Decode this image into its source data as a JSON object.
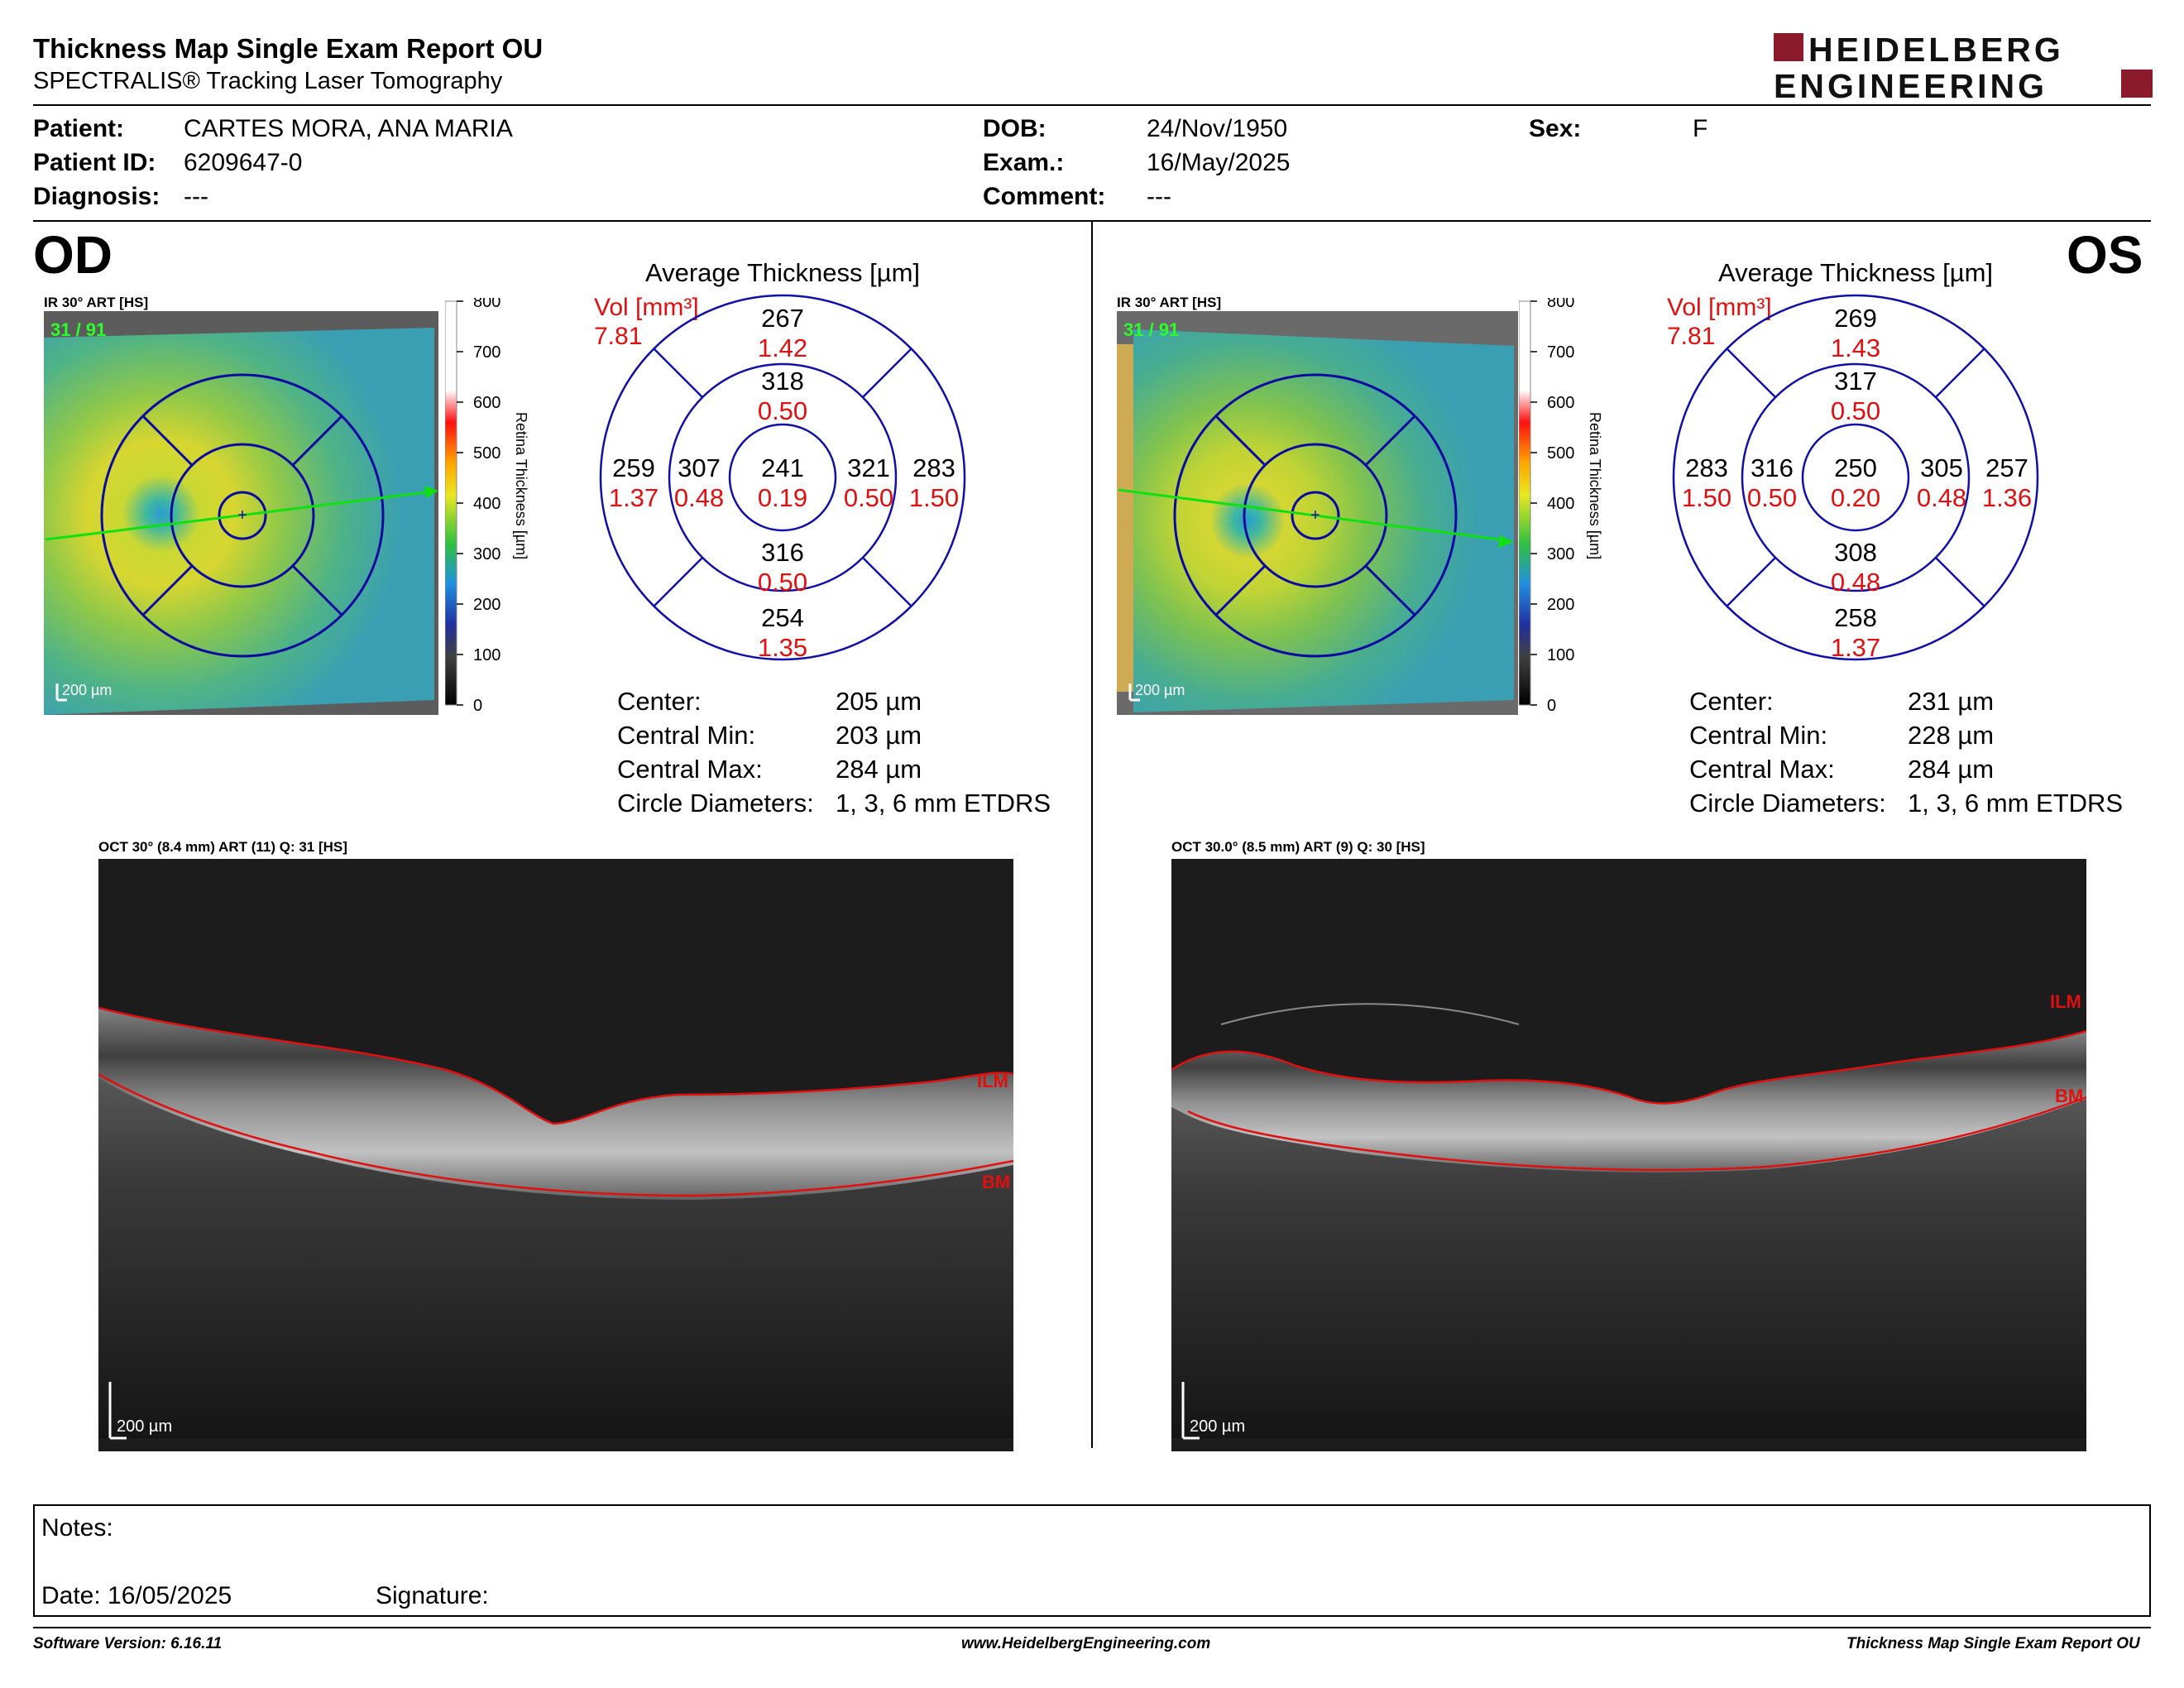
{
  "header": {
    "title": "Thickness Map Single Exam Report OU",
    "subtitle": "SPECTRALIS® Tracking Laser Tomography",
    "logo_line1": "HEIDELBERG",
    "logo_line2": "ENGINEERING",
    "logo_accent": "#8b1a2b"
  },
  "patient": {
    "patient_label": "Patient:",
    "patient_value": "CARTES MORA, ANA MARIA",
    "id_label": "Patient ID:",
    "id_value": "6209647-0",
    "diagnosis_label": "Diagnosis:",
    "diagnosis_value": "---",
    "dob_label": "DOB:",
    "dob_value": "24/Nov/1950",
    "exam_label": "Exam.:",
    "exam_value": "16/May/2025",
    "comment_label": "Comment:",
    "comment_value": "---",
    "sex_label": "Sex:",
    "sex_value": "F"
  },
  "od": {
    "eye": "OD",
    "ir_label": "IR 30° ART [HS]",
    "frames": "31 / 91",
    "scale": "200 µm",
    "colorbar_ticks": [
      "800",
      "700",
      "600",
      "500",
      "400",
      "300",
      "200",
      "100",
      "0"
    ],
    "colorbar_title": "Retina  Thickness [µm]",
    "avg_title": "Average Thickness [µm]",
    "vol_label": "Vol [mm³]",
    "vol_total": "7.81",
    "sectors": {
      "outer_sup_t": "267",
      "outer_sup_v": "1.42",
      "inner_sup_t": "318",
      "inner_sup_v": "0.50",
      "outer_left_t": "259",
      "outer_left_v": "1.37",
      "inner_left_t": "307",
      "inner_left_v": "0.48",
      "center_t": "241",
      "center_v": "0.19",
      "inner_right_t": "321",
      "inner_right_v": "0.50",
      "outer_right_t": "283",
      "outer_right_v": "1.50",
      "inner_inf_t": "316",
      "inner_inf_v": "0.50",
      "outer_inf_t": "254",
      "outer_inf_v": "1.35"
    },
    "summary": {
      "center_label": "Center:",
      "center_value": "205 µm",
      "min_label": "Central Min:",
      "min_value": "203 µm",
      "max_label": "Central Max:",
      "max_value": "284 µm",
      "diam_label": "Circle Diameters:",
      "diam_value": "1, 3, 6 mm ETDRS"
    },
    "oct_label": "OCT 30° (8.4 mm) ART (11) Q: 31 [HS]",
    "ilm": "ILM",
    "bm": "BM",
    "oct_scale": "200 µm"
  },
  "os": {
    "eye": "OS",
    "ir_label": "IR 30° ART [HS]",
    "frames": "31 / 91",
    "scale": "200 µm",
    "colorbar_ticks": [
      "800",
      "700",
      "600",
      "500",
      "400",
      "300",
      "200",
      "100",
      "0"
    ],
    "colorbar_title": "Retina  Thickness [µm]",
    "avg_title": "Average Thickness [µm]",
    "vol_label": "Vol [mm³]",
    "vol_total": "7.81",
    "sectors": {
      "outer_sup_t": "269",
      "outer_sup_v": "1.43",
      "inner_sup_t": "317",
      "inner_sup_v": "0.50",
      "outer_left_t": "283",
      "outer_left_v": "1.50",
      "inner_left_t": "316",
      "inner_left_v": "0.50",
      "center_t": "250",
      "center_v": "0.20",
      "inner_right_t": "305",
      "inner_right_v": "0.48",
      "outer_right_t": "257",
      "outer_right_v": "1.36",
      "inner_inf_t": "308",
      "inner_inf_v": "0.48",
      "outer_inf_t": "258",
      "outer_inf_v": "1.37"
    },
    "summary": {
      "center_label": "Center:",
      "center_value": "231 µm",
      "min_label": "Central Min:",
      "min_value": "228 µm",
      "max_label": "Central Max:",
      "max_value": "284 µm",
      "diam_label": "Circle Diameters:",
      "diam_value": "1, 3, 6 mm ETDRS"
    },
    "oct_label": "OCT 30.0° (8.5 mm) ART (9) Q: 30 [HS]",
    "ilm": "ILM",
    "bm": "BM",
    "oct_scale": "200 µm"
  },
  "notes": {
    "notes_label": "Notes:",
    "date_label": "Date: 16/05/2025",
    "signature_label": "Signature:"
  },
  "footer": {
    "software": "Software Version: 6.16.11",
    "website": "www.HeidelbergEngineering.com",
    "report": "Thickness Map Single Exam Report OU"
  }
}
